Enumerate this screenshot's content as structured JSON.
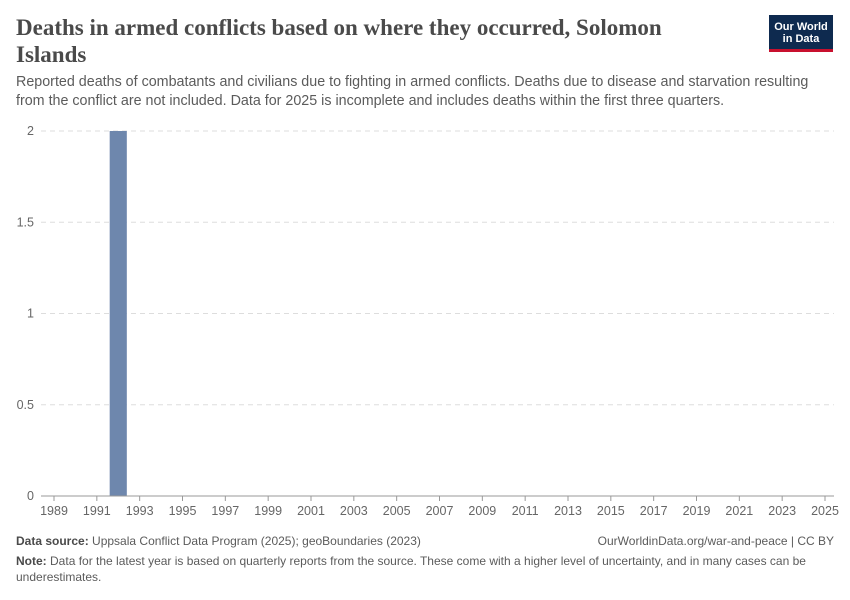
{
  "header": {
    "title": "Deaths in armed conflicts based on where they occurred, Solomon Islands",
    "subtitle": "Reported deaths of combatants and civilians due to fighting in armed conflicts. Deaths due to disease and starvation resulting from the conflict are not included. Data for 2025 is incomplete and includes deaths within the first three quarters.",
    "logo_line1": "Our World",
    "logo_line2": "in Data"
  },
  "footer": {
    "source_label": "Data source:",
    "source_text": "Uppsala Conflict Data Program (2025); geoBoundaries (2023)",
    "url_text": "OurWorldinData.org/war-and-peace | CC BY",
    "note_label": "Note:",
    "note_text": "Data for the latest year is based on quarterly reports from the source. These come with a higher level of uncertainty, and in many cases can be underestimates."
  },
  "colors": {
    "bar": "#6e87ad",
    "logo_bg": "#0e2a4f",
    "logo_accent": "#c8102e",
    "grid": "#dddddd"
  },
  "chart_data": {
    "type": "bar",
    "x": [
      1989,
      1990,
      1991,
      1992,
      1993,
      1994,
      1995,
      1996,
      1997,
      1998,
      1999,
      2000,
      2001,
      2002,
      2003,
      2004,
      2005,
      2006,
      2007,
      2008,
      2009,
      2010,
      2011,
      2012,
      2013,
      2014,
      2015,
      2016,
      2017,
      2018,
      2019,
      2020,
      2021,
      2022,
      2023,
      2024,
      2025
    ],
    "values": [
      0,
      0,
      0,
      2,
      0,
      0,
      0,
      0,
      0,
      0,
      0,
      0,
      0,
      0,
      0,
      0,
      0,
      0,
      0,
      0,
      0,
      0,
      0,
      0,
      0,
      0,
      0,
      0,
      0,
      0,
      0,
      0,
      0,
      0,
      0,
      0,
      0
    ],
    "x_ticks": [
      "1989",
      "1991",
      "1993",
      "1995",
      "1997",
      "1999",
      "2001",
      "2003",
      "2005",
      "2007",
      "2009",
      "2011",
      "2013",
      "2015",
      "2017",
      "2019",
      "2021",
      "2023",
      "2025"
    ],
    "y_ticks": [
      "0",
      "0.5",
      "1",
      "1.5",
      "2"
    ],
    "ylim": [
      0,
      2
    ],
    "grid": true
  }
}
